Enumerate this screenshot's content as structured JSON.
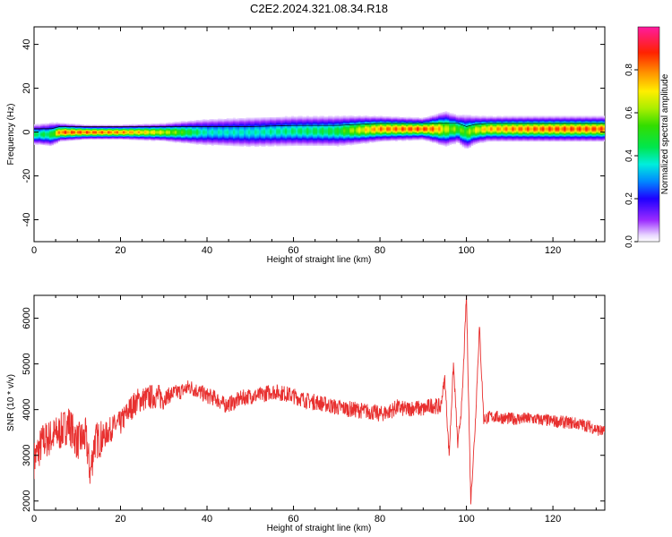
{
  "title": "C2E2.2024.321.08.34.R18",
  "chart_data": [
    {
      "type": "heatmap",
      "xlabel": "Height of straight line (km)",
      "ylabel": "Frequency (Hz)",
      "xlim": [
        0,
        132
      ],
      "ylim": [
        -50,
        48
      ],
      "xticks": [
        0,
        20,
        40,
        60,
        80,
        100,
        120
      ],
      "yticks": [
        -40,
        -20,
        0,
        20,
        40
      ],
      "colorbar": {
        "label": "Normalized spectral amplitude",
        "range": [
          0,
          1
        ],
        "ticks": [
          "0.0",
          "0.2",
          "0.4",
          "0.6",
          "0.8"
        ],
        "tick_values": [
          0,
          0.2,
          0.4,
          0.6,
          0.8
        ]
      },
      "band": {
        "x": [
          0,
          4,
          6,
          12,
          20,
          30,
          40,
          50,
          60,
          70,
          75,
          80,
          90,
          93,
          95,
          98,
          100,
          102,
          105,
          110,
          120,
          132
        ],
        "center_freq": [
          -1,
          -1,
          0,
          0,
          0,
          0,
          0,
          0,
          0.5,
          0.5,
          1,
          1.5,
          1.5,
          1.5,
          1.5,
          1.5,
          0,
          1,
          1.5,
          1.5,
          1.5,
          1.5
        ],
        "peak_amplitude": [
          0.45,
          0.5,
          0.9,
          0.9,
          0.85,
          0.7,
          0.4,
          0.4,
          0.45,
          0.5,
          0.7,
          0.85,
          0.9,
          0.85,
          0.7,
          0.6,
          0.6,
          0.7,
          0.8,
          0.85,
          0.9,
          0.9
        ],
        "halfwidth_hz": [
          3,
          3.5,
          2.5,
          2,
          2,
          2.5,
          4,
          4.5,
          4.5,
          4.5,
          4,
          3.5,
          3,
          4,
          5,
          4,
          5,
          4,
          3.5,
          3.5,
          3.5,
          3.5
        ]
      }
    },
    {
      "type": "line",
      "xlabel": "Height of straight line (km)",
      "ylabel": "SNR (10 * v/v)",
      "xlim": [
        0,
        132
      ],
      "ylim": [
        1800,
        6500
      ],
      "xticks": [
        0,
        20,
        40,
        60,
        80,
        100,
        120
      ],
      "yticks": [
        2000,
        3000,
        4000,
        5000,
        6000
      ],
      "color": "#e8302f",
      "x": [
        0,
        2,
        4,
        6,
        8,
        10,
        12,
        13,
        14,
        16,
        18,
        20,
        22,
        24,
        26,
        28,
        30,
        32,
        34,
        36,
        38,
        40,
        42,
        44,
        46,
        48,
        50,
        52,
        55,
        58,
        60,
        63,
        66,
        70,
        74,
        78,
        80,
        82,
        84,
        86,
        88,
        90,
        92,
        94,
        95,
        96,
        97,
        98,
        99,
        100,
        101,
        102,
        103,
        104,
        106,
        110,
        115,
        120,
        125,
        128,
        132
      ],
      "y": [
        2900,
        3300,
        3400,
        3500,
        3700,
        3300,
        3400,
        2600,
        3300,
        3400,
        3600,
        3700,
        4000,
        4200,
        4250,
        4300,
        4250,
        4350,
        4400,
        4500,
        4400,
        4300,
        4250,
        4100,
        4150,
        4250,
        4300,
        4300,
        4400,
        4350,
        4300,
        4200,
        4150,
        4050,
        4000,
        3950,
        3900,
        3950,
        4050,
        4000,
        4050,
        4000,
        4100,
        4050,
        4700,
        3000,
        5000,
        3200,
        4200,
        6500,
        2000,
        3600,
        5800,
        3800,
        3850,
        3800,
        3800,
        3750,
        3700,
        3650,
        3500
      ]
    }
  ]
}
